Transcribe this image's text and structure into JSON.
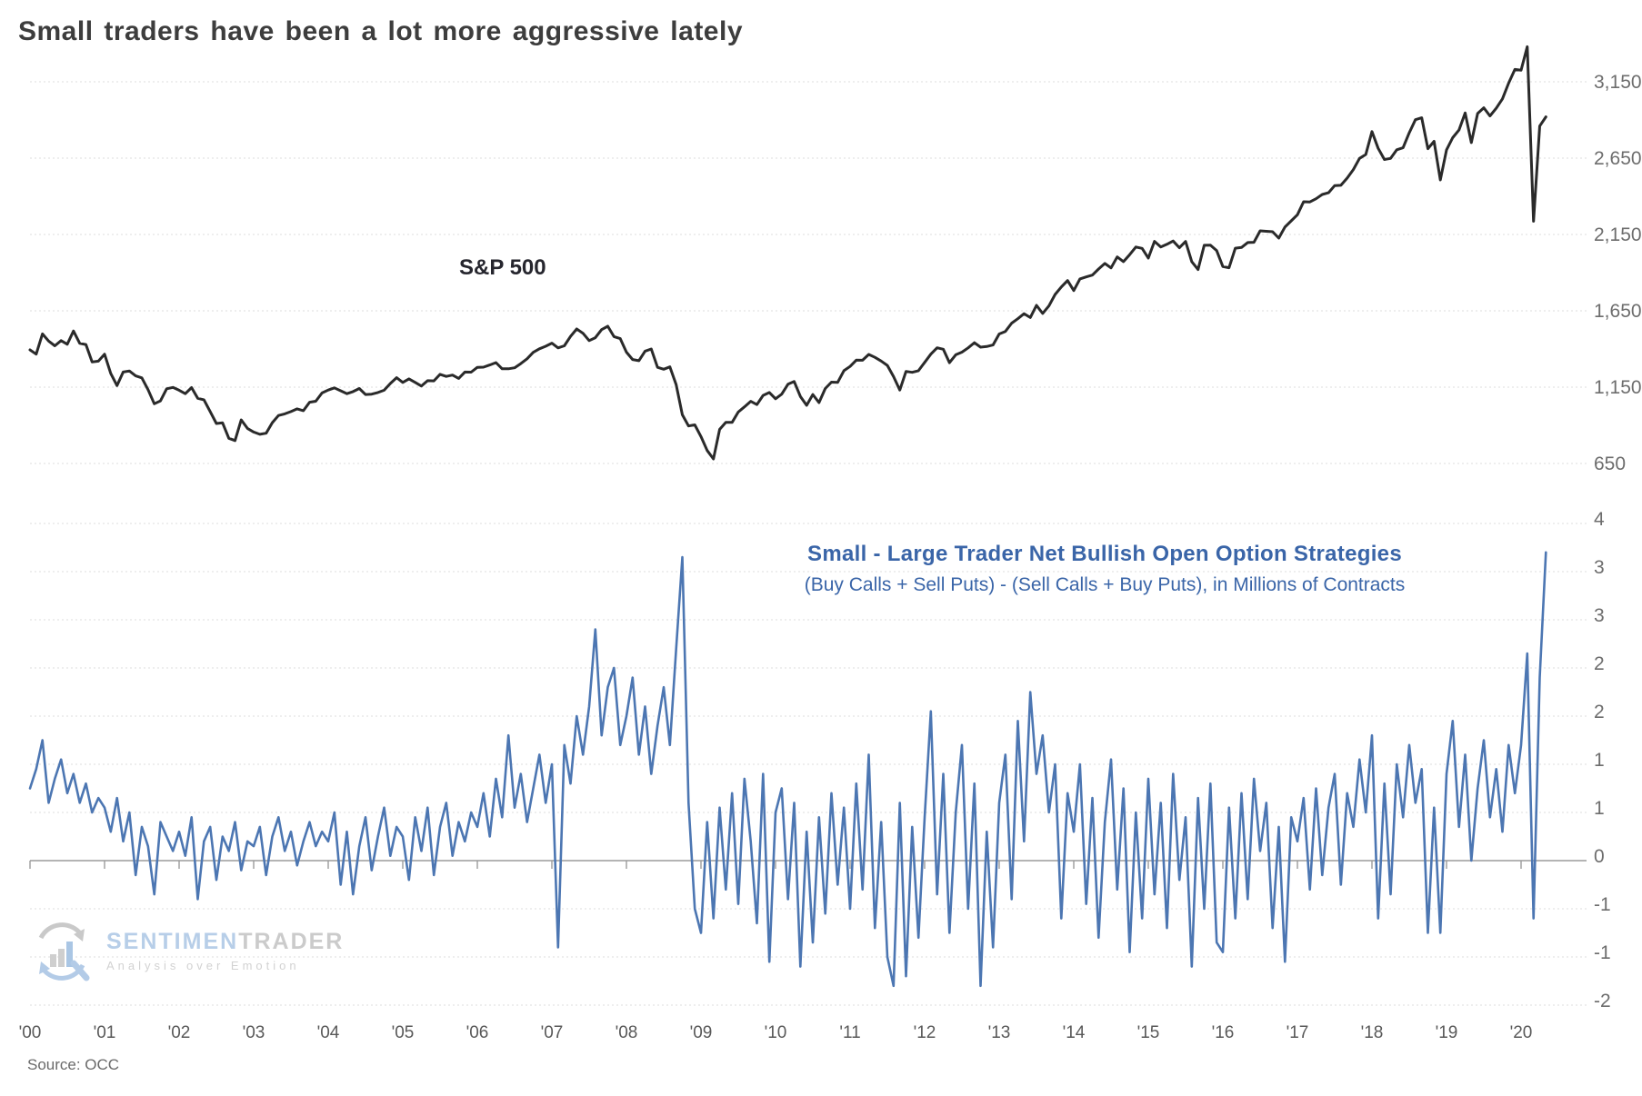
{
  "page": {
    "title": "Small traders have been a lot more aggressive lately",
    "source": "Source: OCC"
  },
  "watermark": {
    "brand_blue": "SENTIMEN",
    "brand_gray": "TRADER",
    "tagline": "Analysis over Emotion"
  },
  "colors": {
    "sp500_line": "#2a2a2a",
    "indicator_line": "#4c76b2",
    "blue_title": "#3a65a8",
    "grid_light": "#dedede",
    "zero_line": "#9b9b9b",
    "axis_label": "#6d6d6d",
    "x_label": "#595959"
  },
  "chart_data": [
    {
      "type": "line",
      "panel": "top",
      "title": "S&P 500",
      "ylabel": "",
      "xlabel": "",
      "grid": true,
      "legend_position": "inline-label",
      "ylim": [
        600,
        3450
      ],
      "xlim_years": [
        2000,
        2020.42
      ],
      "yticks": [
        {
          "value": 3150,
          "label": "3,150"
        },
        {
          "value": 2650,
          "label": "2,650"
        },
        {
          "value": 2150,
          "label": "2,150"
        },
        {
          "value": 1650,
          "label": "1,650"
        },
        {
          "value": 1150,
          "label": "1,150"
        },
        {
          "value": 650,
          "label": "650"
        }
      ],
      "series": [
        {
          "name": "S&P 500",
          "sampling": "monthly estimates read from weekly plot, Jan 2000 - May 2020",
          "x_start_year": 2000,
          "x_step_months": 1,
          "values_by_year": [
            [
              1394,
              1366,
              1499,
              1452,
              1421,
              1455,
              1431,
              1518,
              1437,
              1429,
              1315,
              1320
            ],
            [
              1366,
              1240,
              1160,
              1249,
              1256,
              1224,
              1211,
              1134,
              1041,
              1060,
              1139,
              1148
            ],
            [
              1130,
              1107,
              1147,
              1077,
              1067,
              990,
              912,
              916,
              815,
              800,
              936,
              880
            ],
            [
              856,
              841,
              848,
              917,
              964,
              975,
              990,
              1008,
              996,
              1051,
              1058,
              1112
            ],
            [
              1131,
              1145,
              1126,
              1107,
              1121,
              1141,
              1102,
              1104,
              1115,
              1130,
              1174,
              1212
            ],
            [
              1181,
              1204,
              1181,
              1157,
              1192,
              1191,
              1234,
              1220,
              1229,
              1207,
              1249,
              1248
            ],
            [
              1280,
              1281,
              1295,
              1311,
              1270,
              1270,
              1277,
              1304,
              1336,
              1378,
              1401,
              1418
            ],
            [
              1438,
              1407,
              1421,
              1482,
              1531,
              1503,
              1455,
              1474,
              1527,
              1549,
              1481,
              1468
            ],
            [
              1379,
              1331,
              1323,
              1386,
              1400,
              1280,
              1267,
              1283,
              1166,
              969,
              896,
              903
            ],
            [
              826,
              735,
              680,
              873,
              919,
              919,
              987,
              1021,
              1057,
              1036,
              1096,
              1115
            ],
            [
              1074,
              1104,
              1169,
              1187,
              1089,
              1031,
              1102,
              1049,
              1141,
              1183,
              1181,
              1258
            ],
            [
              1286,
              1327,
              1326,
              1364,
              1345,
              1321,
              1292,
              1219,
              1131,
              1253,
              1247,
              1258
            ],
            [
              1312,
              1366,
              1408,
              1398,
              1310,
              1362,
              1379,
              1407,
              1441,
              1412,
              1416,
              1426
            ],
            [
              1498,
              1515,
              1569,
              1598,
              1631,
              1606,
              1686,
              1633,
              1682,
              1757,
              1806,
              1848
            ],
            [
              1783,
              1859,
              1872,
              1884,
              1924,
              1960,
              1931,
              2003,
              1972,
              2018,
              2068,
              2059
            ],
            [
              1995,
              2105,
              2068,
              2086,
              2107,
              2063,
              2104,
              1972,
              1920,
              2079,
              2080,
              2044
            ],
            [
              1940,
              1932,
              2060,
              2065,
              2097,
              2099,
              2174,
              2171,
              2168,
              2126,
              2199,
              2239
            ],
            [
              2279,
              2364,
              2363,
              2384,
              2412,
              2423,
              2470,
              2472,
              2519,
              2575,
              2648,
              2674
            ],
            [
              2824,
              2714,
              2641,
              2648,
              2705,
              2718,
              2816,
              2902,
              2914,
              2712,
              2760,
              2507
            ],
            [
              2704,
              2784,
              2834,
              2946,
              2752,
              2942,
              2980,
              2926,
              2977,
              3038,
              3141,
              3231
            ],
            [
              3226,
              3380,
              2237,
              2860,
              2920
            ]
          ]
        }
      ]
    },
    {
      "type": "line",
      "panel": "bottom",
      "title": "Small - Large Trader Net Bullish Open Option Strategies",
      "subtitle": "(Buy Calls + Sell Puts) - (Sell Calls + Buy Puts), in Millions of Contracts",
      "grid": true,
      "ylim": [
        -1.75,
        3.75
      ],
      "xlim_years": [
        2000,
        2020.42
      ],
      "ytick_note": "gridlines every 0.5 units; printed labels are rounded half-away-from-zero",
      "yticks": [
        {
          "value": 3.5,
          "label": "4"
        },
        {
          "value": 3.0,
          "label": "3"
        },
        {
          "value": 2.5,
          "label": "3"
        },
        {
          "value": 2.0,
          "label": "2"
        },
        {
          "value": 1.5,
          "label": "2"
        },
        {
          "value": 1.0,
          "label": "1"
        },
        {
          "value": 0.5,
          "label": "1"
        },
        {
          "value": 0.0,
          "label": "0"
        },
        {
          "value": -0.5,
          "label": "-1"
        },
        {
          "value": -1.0,
          "label": "-1"
        },
        {
          "value": -1.5,
          "label": "-2"
        }
      ],
      "x_tick_labels": [
        "'00",
        "'01",
        "'02",
        "'03",
        "'04",
        "'05",
        "'06",
        "'07",
        "'08",
        "'09",
        "'10",
        "'11",
        "'12",
        "'13",
        "'14",
        "'15",
        "'16",
        "'17",
        "'18",
        "'19",
        "'20"
      ],
      "series": [
        {
          "name": "Small - Large Trader Net Bullish Open Option Strategies (millions of contracts)",
          "sampling": "monthly estimates read from weekly plot, Jan 2000 - May 2020",
          "x_start_year": 2000,
          "x_step_months": 1,
          "values_by_year": [
            [
              0.75,
              0.95,
              1.25,
              0.6,
              0.85,
              1.05,
              0.7,
              0.9,
              0.6,
              0.8,
              0.5,
              0.65
            ],
            [
              0.55,
              0.3,
              0.65,
              0.2,
              0.5,
              -0.15,
              0.35,
              0.15,
              -0.35,
              0.4,
              0.25,
              0.1
            ],
            [
              0.3,
              0.05,
              0.45,
              -0.4,
              0.2,
              0.35,
              -0.2,
              0.25,
              0.1,
              0.4,
              -0.1,
              0.2
            ],
            [
              0.15,
              0.35,
              -0.15,
              0.25,
              0.45,
              0.1,
              0.3,
              -0.05,
              0.2,
              0.4,
              0.15,
              0.3
            ],
            [
              0.2,
              0.5,
              -0.25,
              0.3,
              -0.35,
              0.15,
              0.45,
              -0.1,
              0.25,
              0.55,
              0.05,
              0.35
            ],
            [
              0.25,
              -0.2,
              0.45,
              0.1,
              0.55,
              -0.15,
              0.35,
              0.6,
              0.05,
              0.4,
              0.2,
              0.5
            ],
            [
              0.35,
              0.7,
              0.25,
              0.85,
              0.45,
              1.3,
              0.55,
              0.9,
              0.4,
              0.75,
              1.1,
              0.6
            ],
            [
              1.0,
              -0.9,
              1.2,
              0.8,
              1.5,
              1.1,
              1.6,
              2.4,
              1.3,
              1.8,
              2.0,
              1.2
            ],
            [
              1.5,
              1.9,
              1.1,
              1.6,
              0.9,
              1.4,
              1.8,
              1.2,
              2.2,
              3.15,
              0.6,
              -0.5
            ],
            [
              -0.75,
              0.4,
              -0.6,
              0.55,
              -0.3,
              0.7,
              -0.45,
              0.85,
              0.2,
              -0.65,
              0.9,
              -1.05
            ],
            [
              0.5,
              0.75,
              -0.4,
              0.6,
              -1.1,
              0.3,
              -0.85,
              0.45,
              -0.55,
              0.7,
              -0.25,
              0.55
            ],
            [
              -0.5,
              0.8,
              -0.3,
              1.1,
              -0.7,
              0.4,
              -1.0,
              -1.3,
              0.6,
              -1.2,
              0.35,
              -0.8
            ],
            [
              0.45,
              1.55,
              -0.35,
              0.9,
              -0.75,
              0.5,
              1.2,
              -0.5,
              0.8,
              -1.3,
              0.3,
              -0.9
            ],
            [
              0.6,
              1.1,
              -0.4,
              1.45,
              0.2,
              1.75,
              0.9,
              1.3,
              0.5,
              1.0,
              -0.6,
              0.7
            ],
            [
              0.3,
              1.0,
              -0.45,
              0.65,
              -0.8,
              0.4,
              1.05,
              -0.3,
              0.75,
              -0.95,
              0.5,
              -0.6
            ],
            [
              0.85,
              -0.35,
              0.6,
              -0.7,
              0.9,
              -0.2,
              0.45,
              -1.1,
              0.65,
              -0.5,
              0.8,
              -0.85
            ],
            [
              -0.95,
              0.55,
              -0.6,
              0.7,
              -0.4,
              0.85,
              0.1,
              0.6,
              -0.7,
              0.35,
              -1.05,
              0.45
            ],
            [
              0.2,
              0.65,
              -0.3,
              0.75,
              -0.15,
              0.55,
              0.9,
              -0.25,
              0.7,
              0.35,
              1.05,
              0.5
            ],
            [
              1.3,
              -0.6,
              0.8,
              -0.35,
              1.0,
              0.45,
              1.2,
              0.6,
              0.95,
              -0.75,
              0.55,
              -0.75
            ],
            [
              0.9,
              1.45,
              0.35,
              1.1,
              0.0,
              0.75,
              1.25,
              0.45,
              0.95,
              0.3,
              1.2,
              0.7
            ],
            [
              1.2,
              2.15,
              -0.6,
              1.9,
              3.2
            ]
          ]
        }
      ]
    }
  ]
}
